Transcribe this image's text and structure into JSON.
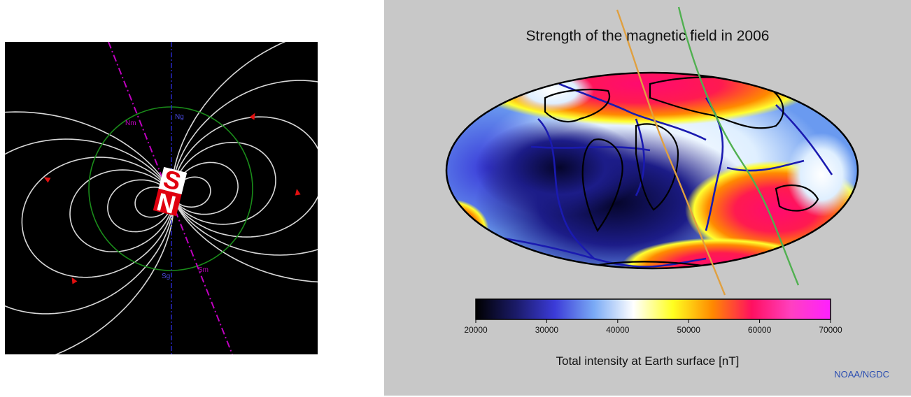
{
  "dipole": {
    "magnet_labels": {
      "south": "S",
      "north": "N"
    },
    "pole_labels": {
      "north_magnetic": "Nm",
      "north_geographic": "Ng",
      "south_magnetic": "Sm",
      "south_geographic": "Sg"
    },
    "colors": {
      "background": "#000000",
      "field_lines": "#d8d8d8",
      "arrows": "#e01010",
      "circle": "#1a8c1a",
      "magnetic_axis": "#c000c0",
      "geographic_axis": "#2a2ad0",
      "magnet_red": "#e00010",
      "magnet_white": "#ffffff"
    }
  },
  "map": {
    "title": "Strength of the magnetic field in 2006",
    "colorbar_title": "Total intensity at Earth surface [nT]",
    "credit": "NOAA/NGDC",
    "colorbar": {
      "min": 20000,
      "max": 70000,
      "ticks": [
        "20000",
        "30000",
        "40000",
        "50000",
        "60000",
        "70000"
      ],
      "stops": [
        "#000000",
        "#1a1a66",
        "#3b3bd8",
        "#7aaaf5",
        "#ffffff",
        "#ffff20",
        "#ff8a00",
        "#ff1060",
        "#ff40c0",
        "#ff20ff"
      ]
    },
    "colors": {
      "background": "#c8c8c8",
      "coast": "#000000",
      "plates": "#1a1ab0",
      "orange_track": "#e0a040",
      "green_track": "#50b050"
    }
  }
}
